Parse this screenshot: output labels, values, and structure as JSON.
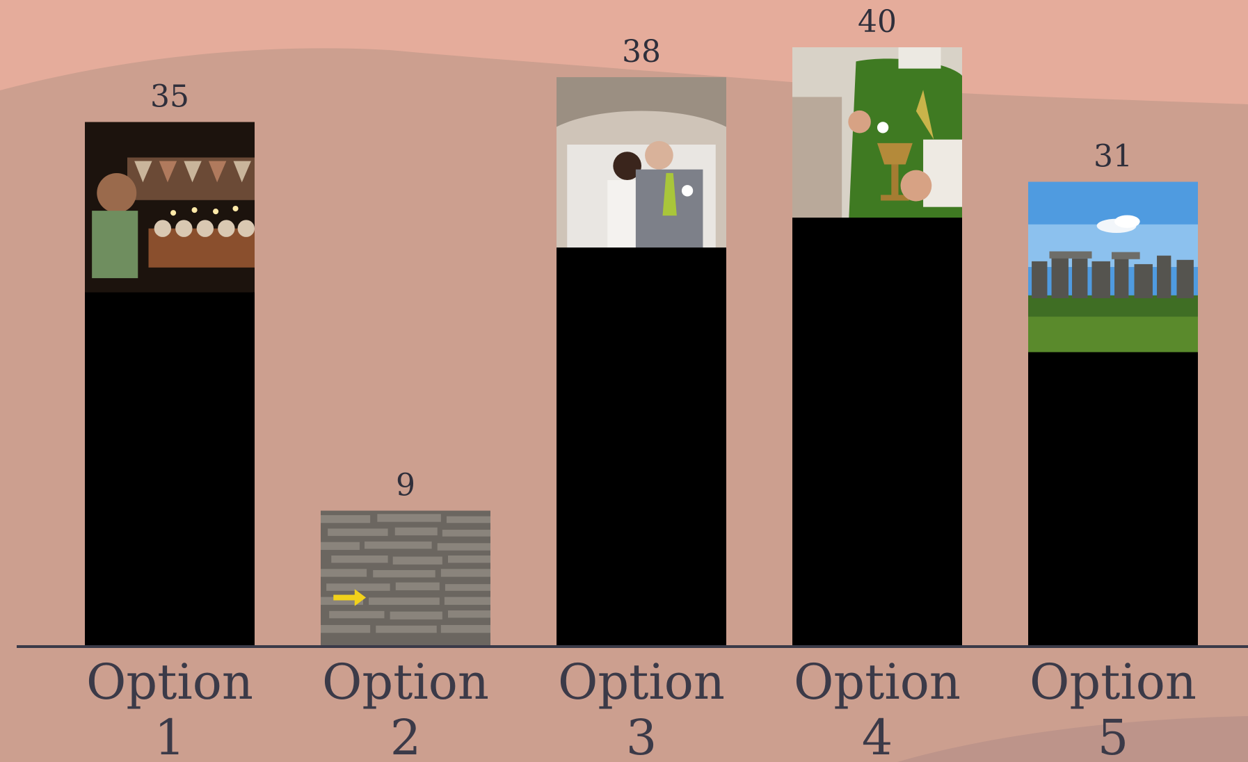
{
  "colors": {
    "background": "#cc9f8f",
    "top_band": "#e5ac9b",
    "bottom_band": "#bd948a",
    "bar": "#000000",
    "baseline": "#3a3a48",
    "text": "#2f2f3b"
  },
  "chart_data": {
    "type": "bar",
    "categories": [
      "Option 1",
      "Option 2",
      "Option 3",
      "Option 4",
      "Option 5"
    ],
    "category_lines": [
      [
        "Option",
        "1"
      ],
      [
        "Option",
        "2"
      ],
      [
        "Option",
        "3"
      ],
      [
        "Option",
        "4"
      ],
      [
        "Option",
        "5"
      ]
    ],
    "values": [
      35,
      9,
      38,
      40,
      31
    ],
    "data_labels": [
      "35",
      "9",
      "38",
      "40",
      "31"
    ],
    "bar_pictures": [
      "birthday-cupcakes-with-candles",
      "stone-wall-with-yellow-arrow",
      "wedding-couple-in-car",
      "priest-holding-chalice",
      "stonehenge"
    ],
    "ylim": [
      0,
      40
    ],
    "grid": false,
    "legend": "none",
    "title": "",
    "xlabel": "",
    "ylabel": ""
  }
}
